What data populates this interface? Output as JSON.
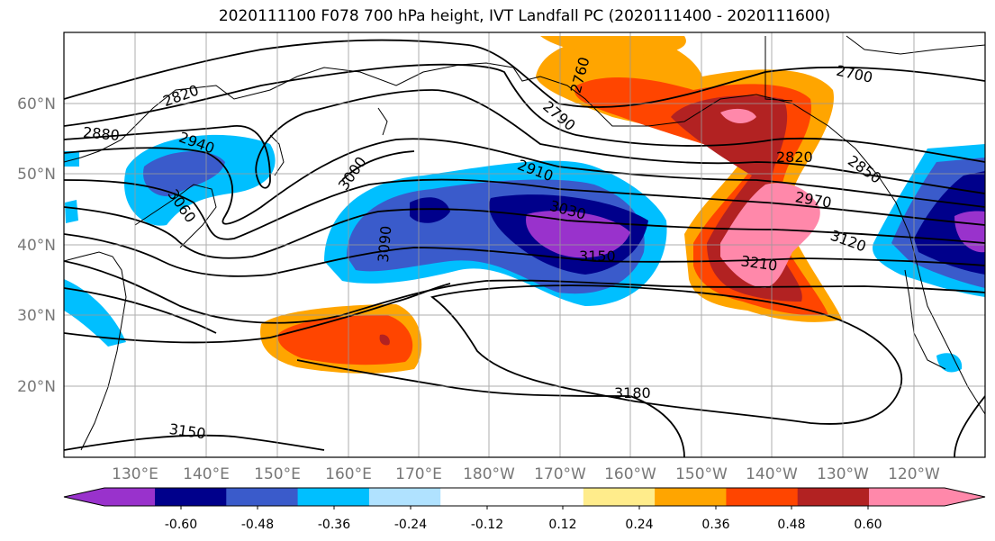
{
  "title": "2020111100 F078 700 hPa height, IVT Landfall PC (2020111400 - 2020111600)",
  "lat_labels": [
    "60°N",
    "50°N",
    "40°N",
    "30°N",
    "20°N"
  ],
  "lon_labels": [
    "130°E",
    "140°E",
    "150°E",
    "160°E",
    "170°E",
    "180°W",
    "170°W",
    "160°W",
    "150°W",
    "140°W",
    "130°W",
    "120°W"
  ],
  "contour_labels": [
    "2820",
    "2880",
    "2940",
    "3060",
    "3000",
    "3090",
    "2910",
    "3030",
    "3150",
    "2760",
    "2790",
    "2700",
    "2820",
    "2850",
    "2970",
    "3120",
    "3210",
    "3180",
    "3150"
  ],
  "colorbar": {
    "colors": [
      "#9932CC",
      "#00008B",
      "#3A5BCB",
      "#00BFFF",
      "#B0E2FF",
      "#FFFFFF",
      "#FFFFFF",
      "#FFEC8B",
      "#FFA500",
      "#FF4500",
      "#B22222",
      "#FF88AA"
    ],
    "tick_labels": [
      "-0.60",
      "-0.48",
      "-0.36",
      "-0.24",
      "-0.12",
      "0.12",
      "0.24",
      "0.36",
      "0.48",
      "0.60"
    ]
  }
}
